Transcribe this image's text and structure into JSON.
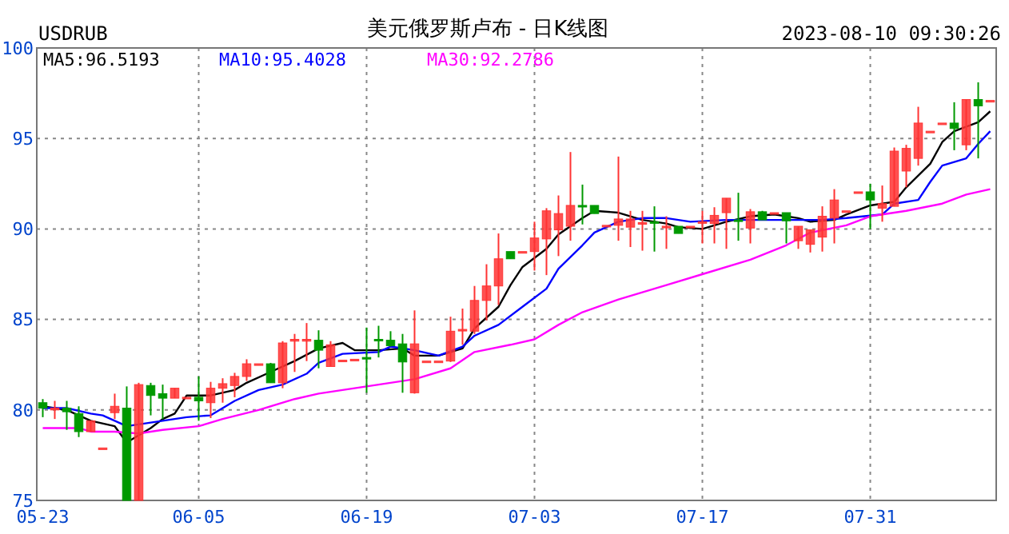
{
  "chart_data": {
    "type": "candlestick",
    "title": "美元俄罗斯卢布 - 日K线图",
    "annotations": [
      "USDRUB",
      "2023-08-10 09:30:26"
    ],
    "legend": "top left",
    "grid": true,
    "xlim": [
      "2023-05-22T12:00",
      "2023-08-10T12:00"
    ],
    "xticks": [
      {
        "value": "2023-05-23",
        "label": "05-23"
      },
      {
        "value": "2023-06-05",
        "label": "06-05"
      },
      {
        "value": "2023-06-19",
        "label": "06-19"
      },
      {
        "value": "2023-07-03",
        "label": "07-03"
      },
      {
        "value": "2023-07-17",
        "label": "07-17"
      },
      {
        "value": "2023-07-31",
        "label": "07-31"
      }
    ],
    "ylim": [
      75,
      100
    ],
    "yticks": [
      75,
      80,
      85,
      90,
      95,
      100
    ],
    "x": [
      "2023-05-23",
      "2023-05-24",
      "2023-05-25",
      "2023-05-26",
      "2023-05-27",
      "2023-05-28",
      "2023-05-29",
      "2023-05-30",
      "2023-05-31",
      "2023-06-01",
      "2023-06-02",
      "2023-06-03",
      "2023-06-04",
      "2023-06-05",
      "2023-06-06",
      "2023-06-07",
      "2023-06-08",
      "2023-06-09",
      "2023-06-10",
      "2023-06-11",
      "2023-06-12",
      "2023-06-13",
      "2023-06-14",
      "2023-06-15",
      "2023-06-16",
      "2023-06-17",
      "2023-06-18",
      "2023-06-19",
      "2023-06-20",
      "2023-06-21",
      "2023-06-22",
      "2023-06-23",
      "2023-06-24",
      "2023-06-25",
      "2023-06-26",
      "2023-06-27",
      "2023-06-28",
      "2023-06-29",
      "2023-06-30",
      "2023-07-01",
      "2023-07-02",
      "2023-07-03",
      "2023-07-04",
      "2023-07-05",
      "2023-07-06",
      "2023-07-07",
      "2023-07-08",
      "2023-07-09",
      "2023-07-10",
      "2023-07-11",
      "2023-07-12",
      "2023-07-13",
      "2023-07-14",
      "2023-07-15",
      "2023-07-16",
      "2023-07-17",
      "2023-07-18",
      "2023-07-19",
      "2023-07-20",
      "2023-07-21",
      "2023-07-22",
      "2023-07-23",
      "2023-07-24",
      "2023-07-25",
      "2023-07-26",
      "2023-07-27",
      "2023-07-28",
      "2023-07-29",
      "2023-07-30",
      "2023-07-31",
      "2023-08-01",
      "2023-08-02",
      "2023-08-03",
      "2023-08-04",
      "2023-08-05",
      "2023-08-06",
      "2023-08-07",
      "2023-08-08",
      "2023-08-09",
      "2023-08-10"
    ],
    "ohlc": [
      [
        80.4,
        80.6,
        79.6,
        80.1
      ],
      [
        80.0,
        80.5,
        79.5,
        80.1
      ],
      [
        80.1,
        80.5,
        78.9,
        79.9
      ],
      [
        79.8,
        80.2,
        78.5,
        78.8
      ],
      [
        78.8,
        79.4,
        78.8,
        79.4
      ],
      [
        77.9,
        77.9,
        77.9,
        77.9
      ],
      [
        79.85,
        80.9,
        79.5,
        80.2
      ],
      [
        80.1,
        81.3,
        75,
        75
      ],
      [
        75,
        81.5,
        75,
        81.4
      ],
      [
        81.35,
        81.5,
        79.7,
        80.8
      ],
      [
        80.9,
        81.4,
        79.5,
        80.65
      ],
      [
        80.65,
        81.2,
        80.65,
        81.2
      ],
      [
        80.7,
        80.7,
        80.7,
        80.7
      ],
      [
        80.7,
        81.85,
        79.4,
        80.5
      ],
      [
        80.4,
        81.55,
        79.55,
        81.2
      ],
      [
        81.2,
        81.75,
        80.4,
        81.45
      ],
      [
        81.35,
        82.05,
        80.7,
        81.85
      ],
      [
        81.85,
        82.8,
        81.6,
        82.55
      ],
      [
        82.55,
        82.55,
        82.55,
        82.55
      ],
      [
        82.55,
        82.6,
        81.5,
        81.5
      ],
      [
        81.5,
        83.8,
        81.2,
        83.7
      ],
      [
        83.8,
        84.2,
        82.1,
        83.9
      ],
      [
        83.8,
        84.8,
        82.7,
        83.9
      ],
      [
        83.85,
        84.4,
        82.3,
        83.3
      ],
      [
        82.4,
        83.8,
        82.4,
        83.6
      ],
      [
        82.75,
        82.75,
        82.75,
        82.75
      ],
      [
        82.8,
        82.8,
        82.8,
        82.8
      ],
      [
        82.9,
        84.55,
        80.95,
        82.85
      ],
      [
        83.9,
        84.65,
        82.9,
        83.85
      ],
      [
        83.85,
        84.35,
        83.5,
        83.55
      ],
      [
        83.65,
        84.2,
        80.95,
        82.65
      ],
      [
        80.95,
        85.5,
        80.9,
        83.65
      ],
      [
        82.7,
        82.7,
        82.7,
        82.7
      ],
      [
        82.7,
        82.7,
        82.7,
        82.7
      ],
      [
        82.7,
        85.15,
        82.65,
        84.35
      ],
      [
        84.4,
        85.6,
        83.6,
        84.45
      ],
      [
        84.35,
        86.85,
        84.2,
        86.05
      ],
      [
        86.05,
        88.05,
        84.95,
        86.85
      ],
      [
        86.85,
        89.75,
        85.8,
        88.35
      ],
      [
        88.75,
        88.75,
        88.35,
        88.35
      ],
      [
        88.75,
        88.75,
        88.75,
        88.75
      ],
      [
        88.75,
        90.4,
        87.7,
        89.5
      ],
      [
        89.45,
        91.15,
        87.45,
        91.0
      ],
      [
        89.95,
        91.85,
        88.5,
        90.85
      ],
      [
        90.15,
        94.25,
        89.35,
        91.3
      ],
      [
        91.3,
        92.45,
        90.25,
        91.25
      ],
      [
        91.3,
        91.3,
        90.85,
        90.85
      ],
      [
        90.2,
        90.2,
        90.2,
        90.2
      ],
      [
        90.2,
        94.0,
        89.35,
        90.55
      ],
      [
        90.1,
        91.0,
        89.0,
        90.55
      ],
      [
        90.3,
        91.0,
        88.8,
        90.35
      ],
      [
        90.4,
        91.25,
        88.75,
        90.35
      ],
      [
        90.1,
        90.7,
        88.9,
        90.15
      ],
      [
        90.15,
        90.15,
        89.75,
        89.75
      ],
      [
        90.15,
        90.15,
        90.15,
        90.15
      ],
      [
        90.35,
        91.0,
        89.2,
        90.4
      ],
      [
        90.3,
        91.2,
        89.2,
        90.75
      ],
      [
        90.9,
        91.7,
        88.9,
        91.7
      ],
      [
        90.5,
        92.0,
        89.35,
        90.45
      ],
      [
        90.05,
        91.1,
        89.2,
        90.95
      ],
      [
        90.95,
        91.0,
        90.5,
        90.5
      ],
      [
        90.9,
        90.9,
        90.9,
        90.9
      ],
      [
        90.9,
        90.9,
        89.2,
        90.45
      ],
      [
        89.35,
        90.15,
        88.9,
        90.15
      ],
      [
        89.15,
        89.95,
        88.7,
        89.95
      ],
      [
        89.55,
        91.25,
        88.75,
        90.7
      ],
      [
        90.6,
        92.2,
        89.2,
        91.6
      ],
      [
        91.0,
        91.0,
        91.0,
        91.0
      ],
      [
        92.05,
        92.05,
        92.05,
        92.05
      ],
      [
        92.05,
        92.5,
        90.0,
        91.6
      ],
      [
        91.15,
        92.4,
        90.4,
        91.4
      ],
      [
        91.25,
        94.5,
        91.25,
        94.3
      ],
      [
        93.2,
        94.65,
        92.3,
        94.45
      ],
      [
        93.9,
        96.75,
        93.5,
        95.85
      ],
      [
        95.4,
        95.4,
        95.4,
        95.4
      ],
      [
        95.85,
        95.85,
        95.85,
        95.85
      ],
      [
        95.85,
        97.0,
        94.35,
        95.55
      ],
      [
        94.65,
        97.15,
        94.35,
        97.15
      ],
      [
        97.15,
        98.1,
        93.9,
        96.8
      ],
      [
        97.1,
        97.1,
        97.1,
        97.1
      ]
    ],
    "series": [
      {
        "name": "MA5:96.5193",
        "type": "line",
        "color": "#000000",
        "x": [
          "2023-05-23",
          "2023-05-25",
          "2023-05-27",
          "2023-05-29",
          "2023-05-30",
          "2023-06-01",
          "2023-06-02",
          "2023-06-03",
          "2023-06-04",
          "2023-06-06",
          "2023-06-08",
          "2023-06-09",
          "2023-06-11",
          "2023-06-13",
          "2023-06-15",
          "2023-06-17",
          "2023-06-18",
          "2023-06-20",
          "2023-06-22",
          "2023-06-23",
          "2023-06-25",
          "2023-06-27",
          "2023-06-28",
          "2023-06-30",
          "2023-07-01",
          "2023-07-02",
          "2023-07-04",
          "2023-07-05",
          "2023-07-07",
          "2023-07-08",
          "2023-07-10",
          "2023-07-12",
          "2023-07-14",
          "2023-07-15",
          "2023-07-17",
          "2023-07-19",
          "2023-07-21",
          "2023-07-23",
          "2023-07-25",
          "2023-07-26",
          "2023-07-28",
          "2023-07-29",
          "2023-07-31",
          "2023-08-02",
          "2023-08-03",
          "2023-08-05",
          "2023-08-06",
          "2023-08-07",
          "2023-08-09",
          "2023-08-10"
        ],
        "values": [
          80.2,
          80.0,
          79.4,
          79.1,
          78.2,
          79.0,
          79.5,
          79.8,
          80.8,
          80.8,
          81.1,
          81.5,
          82.1,
          82.7,
          83.4,
          83.7,
          83.3,
          83.3,
          83.4,
          83.0,
          83.0,
          83.4,
          84.5,
          85.7,
          86.9,
          87.9,
          88.9,
          89.7,
          90.6,
          91.0,
          90.9,
          90.5,
          90.3,
          90.1,
          90.0,
          90.4,
          90.7,
          90.8,
          90.6,
          90.4,
          90.5,
          90.8,
          91.3,
          91.5,
          92.3,
          93.6,
          94.8,
          95.4,
          95.9,
          96.5
        ]
      },
      {
        "name": "MA10:95.4028",
        "type": "line",
        "color": "#0000ff",
        "x": [
          "2023-05-23",
          "2023-05-25",
          "2023-05-27",
          "2023-05-28",
          "2023-05-30",
          "2023-05-31",
          "2023-06-02",
          "2023-06-04",
          "2023-06-06",
          "2023-06-07",
          "2023-06-08",
          "2023-06-10",
          "2023-06-12",
          "2023-06-14",
          "2023-06-15",
          "2023-06-17",
          "2023-06-20",
          "2023-06-21",
          "2023-06-23",
          "2023-06-25",
          "2023-06-27",
          "2023-06-28",
          "2023-06-30",
          "2023-07-02",
          "2023-07-04",
          "2023-07-05",
          "2023-07-07",
          "2023-07-08",
          "2023-07-10",
          "2023-07-12",
          "2023-07-14",
          "2023-07-16",
          "2023-07-19",
          "2023-07-22",
          "2023-07-27",
          "2023-07-29",
          "2023-08-01",
          "2023-08-02",
          "2023-08-04",
          "2023-08-05",
          "2023-08-06",
          "2023-08-08",
          "2023-08-09",
          "2023-08-10"
        ],
        "values": [
          80.1,
          80.1,
          79.8,
          79.7,
          79.1,
          79.2,
          79.4,
          79.6,
          79.7,
          80.1,
          80.5,
          81.1,
          81.4,
          82.0,
          82.6,
          83.1,
          83.2,
          83.5,
          83.3,
          83.0,
          83.5,
          84.1,
          84.7,
          85.7,
          86.7,
          87.8,
          89.1,
          89.8,
          90.4,
          90.6,
          90.6,
          90.4,
          90.5,
          90.5,
          90.5,
          90.6,
          90.8,
          91.4,
          91.6,
          92.6,
          93.5,
          93.9,
          94.7,
          95.4
        ]
      },
      {
        "name": "MA30:92.2786",
        "type": "line",
        "color": "#ff00ff",
        "x": [
          "2023-05-23",
          "2023-05-26",
          "2023-05-27",
          "2023-05-29",
          "2023-05-31",
          "2023-06-02",
          "2023-06-05",
          "2023-06-07",
          "2023-06-10",
          "2023-06-13",
          "2023-06-15",
          "2023-06-20",
          "2023-06-23",
          "2023-06-26",
          "2023-06-28",
          "2023-07-01",
          "2023-07-03",
          "2023-07-05",
          "2023-07-07",
          "2023-07-10",
          "2023-07-12",
          "2023-07-14",
          "2023-07-17",
          "2023-07-21",
          "2023-07-24",
          "2023-07-26",
          "2023-07-29",
          "2023-07-31",
          "2023-08-03",
          "2023-08-06",
          "2023-08-08",
          "2023-08-10"
        ],
        "values": [
          79.0,
          79.0,
          78.8,
          78.8,
          78.7,
          78.9,
          79.1,
          79.5,
          80.0,
          80.6,
          80.9,
          81.4,
          81.7,
          82.3,
          83.2,
          83.6,
          83.9,
          84.7,
          85.4,
          86.1,
          86.5,
          86.9,
          87.5,
          88.3,
          89.1,
          89.8,
          90.2,
          90.7,
          91.0,
          91.4,
          91.9,
          92.2
        ]
      }
    ]
  }
}
